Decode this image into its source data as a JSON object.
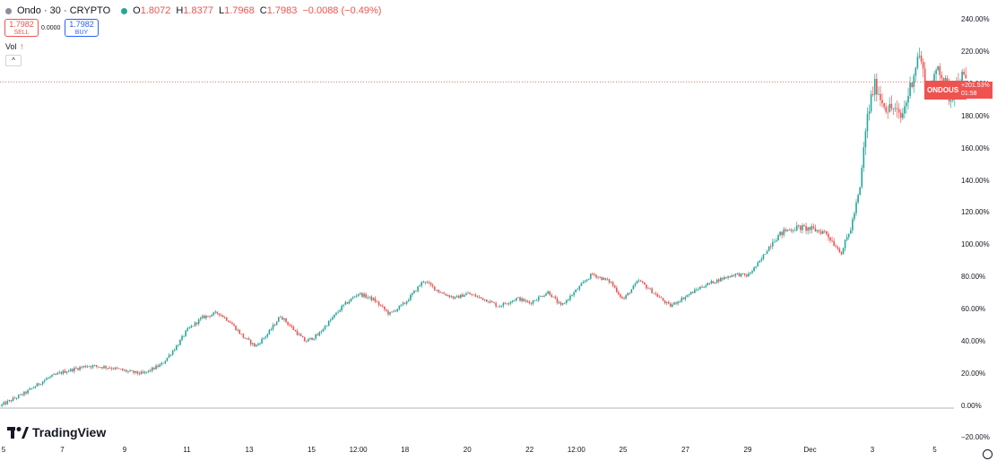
{
  "header": {
    "title": "Ondo · 30 · CRYPTO",
    "open_key": "O",
    "open": "1.8072",
    "high_key": "H",
    "high": "1.8377",
    "low_key": "L",
    "low": "1.7968",
    "close_key": "C",
    "close": "1.7983",
    "change": "−0.0088 (−0.49%)"
  },
  "trade": {
    "sell_price": "1.7982",
    "sell_label": "SELL",
    "spread": "0.0000",
    "buy_price": "1.7982",
    "buy_label": "BUY"
  },
  "volume": {
    "label": "Vol",
    "flag": "!"
  },
  "collapse_icon": "^",
  "price_label": {
    "symbol": "ONDOUSD",
    "change": "+201.53%",
    "countdown": "01:58"
  },
  "branding": {
    "name": "TradingView"
  },
  "colors": {
    "up": "#26a69a",
    "down": "#ef5350",
    "accent": "#2962ff"
  },
  "chart_data": {
    "type": "candlestick",
    "yaxis_unit": "percent change",
    "y_ticks": [
      "240.00%",
      "220.00%",
      "200.00%",
      "180.00%",
      "160.00%",
      "140.00%",
      "120.00%",
      "100.00%",
      "80.00%",
      "60.00%",
      "40.00%",
      "20.00%",
      "0.00%",
      "−20.00%"
    ],
    "y_tick_values": [
      240,
      220,
      200,
      180,
      160,
      140,
      120,
      100,
      80,
      60,
      40,
      20,
      0,
      -20
    ],
    "ylim": [
      -22,
      248
    ],
    "x_ticks": [
      "5",
      "7",
      "9",
      "11",
      "13",
      "15",
      "12:00",
      "18",
      "20",
      "22",
      "12:00",
      "25",
      "27",
      "29",
      "Dec",
      "3",
      "5"
    ],
    "x_tick_days": [
      5,
      7,
      9,
      11,
      13,
      15,
      16.5,
      18,
      20,
      22,
      23.5,
      25,
      27,
      29,
      31,
      33,
      35
    ],
    "xlim": [
      5,
      37
    ],
    "last_value": 201.53,
    "anchor_x": [
      5.0,
      5.8,
      6.5,
      7.0,
      7.8,
      8.5,
      9.2,
      9.6,
      10.2,
      10.7,
      11.0,
      11.5,
      12.0,
      12.4,
      12.8,
      13.2,
      13.6,
      14.0,
      14.5,
      14.8,
      15.2,
      15.5,
      16.0,
      16.5,
      17.0,
      17.5,
      18.0,
      18.6,
      19.1,
      19.6,
      20.0,
      20.6,
      21.0,
      21.6,
      22.0,
      22.6,
      23.0,
      23.5,
      24.0,
      24.6,
      25.0,
      25.5,
      26.0,
      26.5,
      27.0,
      27.5,
      28.0,
      28.6,
      29.0,
      29.4,
      29.8,
      30.2,
      30.6,
      31.0,
      31.5,
      32.0,
      32.3,
      32.6,
      32.8,
      33.0,
      33.1,
      33.3,
      33.5,
      33.7,
      33.9,
      34.1,
      34.3,
      34.5,
      34.7,
      34.9,
      35.1,
      35.3,
      35.5,
      35.7,
      35.9,
      36.0
    ],
    "anchor_y": [
      0,
      8,
      17,
      21,
      25,
      24,
      21,
      20,
      26,
      38,
      47,
      55,
      58,
      52,
      43,
      37,
      45,
      56,
      46,
      40,
      44,
      51,
      62,
      70,
      66,
      57,
      64,
      78,
      71,
      67,
      70,
      66,
      62,
      67,
      64,
      71,
      62,
      72,
      82,
      77,
      66,
      78,
      70,
      62,
      68,
      74,
      78,
      82,
      81,
      90,
      103,
      109,
      111,
      110,
      108,
      95,
      110,
      135,
      175,
      195,
      200,
      190,
      185,
      185,
      178,
      190,
      205,
      220,
      200,
      195,
      212,
      203,
      190,
      200,
      205,
      201.5
    ]
  }
}
